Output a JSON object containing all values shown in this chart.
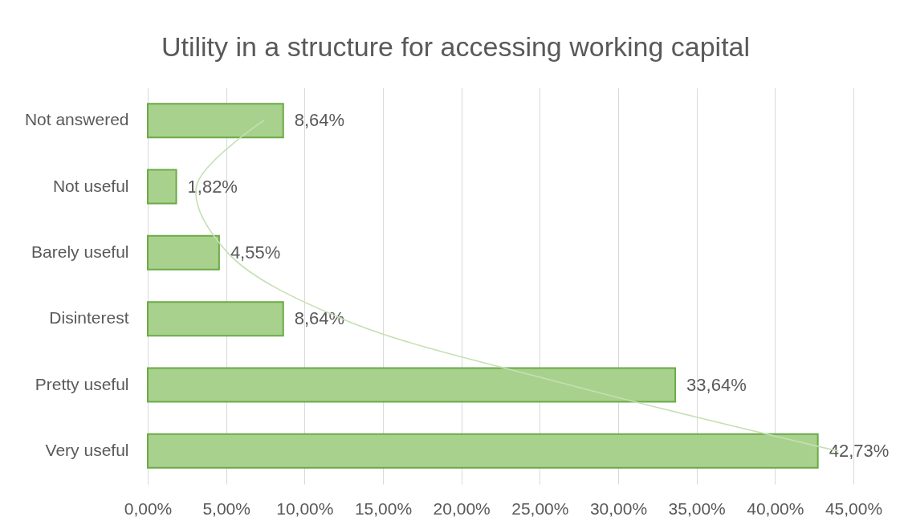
{
  "chart_data": {
    "type": "bar",
    "orientation": "horizontal",
    "title": "Utility in a structure for accessing working capital",
    "categories": [
      "Not answered",
      "Not useful",
      "Barely useful",
      "Disinterest",
      "Pretty useful",
      "Very useful"
    ],
    "series": [
      {
        "color": "#a9d18e",
        "values": [
          8.64,
          1.82,
          4.55,
          8.64,
          33.64,
          42.73
        ],
        "value_labels": [
          "8,64%",
          "1,82%",
          "4,55%",
          "8,64%",
          "33,64%",
          "42,73%"
        ]
      },
      {
        "type": "line",
        "color": "#c5e0b4",
        "values": [
          7.4,
          3.1,
          5.1,
          12.4,
          26.9,
          44.0
        ]
      }
    ],
    "xlim": [
      0,
      45
    ],
    "xticks": [
      {
        "value": 0,
        "label": "0,00%"
      },
      {
        "value": 5,
        "label": "5,00%"
      },
      {
        "value": 10,
        "label": "10,00%"
      },
      {
        "value": 15,
        "label": "15,00%"
      },
      {
        "value": 20,
        "label": "20,00%"
      },
      {
        "value": 25,
        "label": "25,00%"
      },
      {
        "value": 30,
        "label": "30,00%"
      },
      {
        "value": 35,
        "label": "35,00%"
      },
      {
        "value": 40,
        "label": "40,00%"
      },
      {
        "value": 45,
        "label": "45,00%"
      }
    ],
    "grid": "x"
  }
}
